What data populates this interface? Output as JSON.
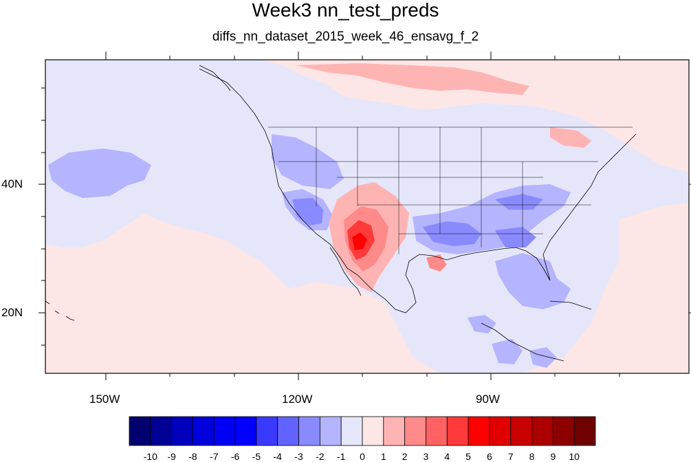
{
  "title": "Week3 nn_test_preds",
  "subtitle": "diffs_nn_dataset_2015_week_46_ensavg_f_2",
  "axes": {
    "lon_labels": [
      "150W",
      "120W",
      "90W"
    ],
    "lat_labels": [
      "40N",
      "20N"
    ]
  },
  "colorbar": {
    "labels": [
      "-10",
      "-9",
      "-8",
      "-7",
      "-6",
      "-5",
      "-4",
      "-3",
      "-2",
      "-1",
      "0",
      "1",
      "2",
      "3",
      "4",
      "5",
      "6",
      "7",
      "8",
      "9",
      "10"
    ],
    "colors": [
      "#00006e",
      "#000094",
      "#0000bd",
      "#0000dc",
      "#0000f5",
      "#0000ff",
      "#3a3aff",
      "#6262ff",
      "#8a8aff",
      "#b4b4ff",
      "#e6e6fa",
      "#fde6e6",
      "#ffb4b4",
      "#ff8a8a",
      "#ff6262",
      "#ff3a3a",
      "#ff0000",
      "#e00000",
      "#c80000",
      "#aa0000",
      "#8c0000",
      "#6e0000"
    ]
  },
  "map": {
    "background_color": "#fdecec",
    "ocean_neg_color": "#e6e6fa",
    "region": "North America / Pacific"
  }
}
